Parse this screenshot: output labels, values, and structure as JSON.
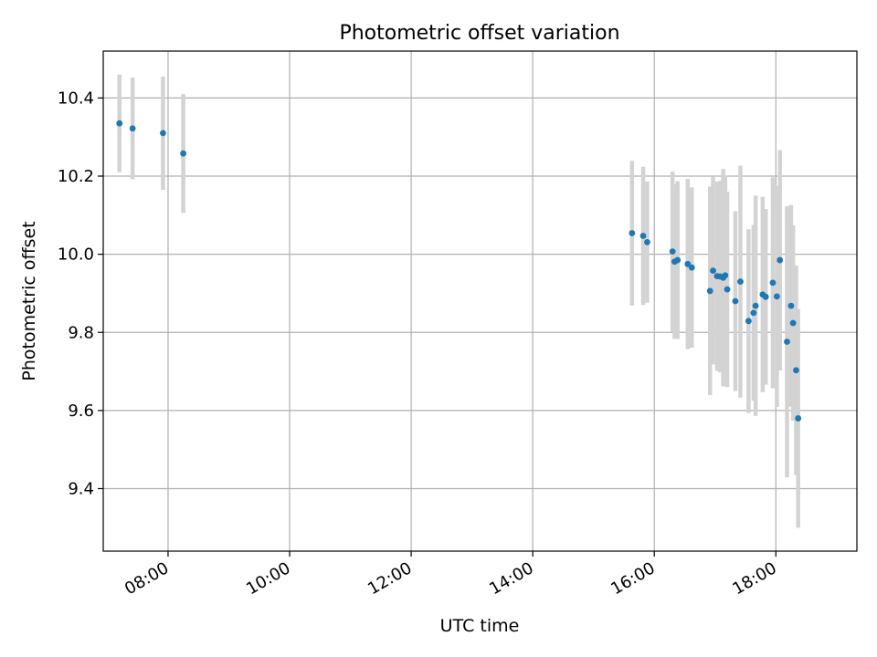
{
  "chart_data": {
    "type": "scatter",
    "title": "Photometric offset variation",
    "xlabel": "UTC time",
    "ylabel": "Photometric offset",
    "x_tick_labels": [
      "08:00",
      "10:00",
      "12:00",
      "14:00",
      "16:00",
      "18:00"
    ],
    "x_tick_values": [
      "08:00",
      "10:00",
      "12:00",
      "14:00",
      "16:00",
      "18:00"
    ],
    "y_tick_labels": [
      "9.4",
      "9.6",
      "9.8",
      "10.0",
      "10.2",
      "10.4"
    ],
    "y_tick_values": [
      9.4,
      9.6,
      9.8,
      10.0,
      10.2,
      10.4
    ],
    "xlim": [
      "06:56",
      "19:20"
    ],
    "ylim": [
      9.24,
      10.52
    ],
    "grid": true,
    "legend": false,
    "colors": {
      "points": "#1f77b4",
      "error_bars": "#d3d3d3",
      "grid": "#b0b0b0",
      "axes": "#000000"
    },
    "points": [
      {
        "x": "07:12",
        "y": 10.335,
        "err": 0.125
      },
      {
        "x": "07:25",
        "y": 10.322,
        "err": 0.13
      },
      {
        "x": "07:55",
        "y": 10.31,
        "err": 0.145
      },
      {
        "x": "08:15",
        "y": 10.258,
        "err": 0.152
      },
      {
        "x": "15:38",
        "y": 10.054,
        "err": 0.185
      },
      {
        "x": "15:49",
        "y": 10.047,
        "err": 0.177
      },
      {
        "x": "15:53",
        "y": 10.031,
        "err": 0.155
      },
      {
        "x": "16:18",
        "y": 10.007,
        "err": 0.205
      },
      {
        "x": "16:20",
        "y": 9.981,
        "err": 0.198
      },
      {
        "x": "16:23",
        "y": 9.985,
        "err": 0.202
      },
      {
        "x": "16:33",
        "y": 9.975,
        "err": 0.218
      },
      {
        "x": "16:37",
        "y": 9.966,
        "err": 0.205
      },
      {
        "x": "16:55",
        "y": 9.906,
        "err": 0.267
      },
      {
        "x": "16:58",
        "y": 9.958,
        "err": 0.24
      },
      {
        "x": "17:02",
        "y": 9.944,
        "err": 0.242
      },
      {
        "x": "17:05",
        "y": 9.943,
        "err": 0.245
      },
      {
        "x": "17:08",
        "y": 9.94,
        "err": 0.278
      },
      {
        "x": "17:10",
        "y": 9.946,
        "err": 0.255
      },
      {
        "x": "17:12",
        "y": 9.91,
        "err": 0.25
      },
      {
        "x": "17:20",
        "y": 9.88,
        "err": 0.23
      },
      {
        "x": "17:25",
        "y": 9.93,
        "err": 0.297
      },
      {
        "x": "17:33",
        "y": 9.829,
        "err": 0.235
      },
      {
        "x": "17:38",
        "y": 9.85,
        "err": 0.225
      },
      {
        "x": "17:40",
        "y": 9.868,
        "err": 0.282
      },
      {
        "x": "17:47",
        "y": 9.897,
        "err": 0.25
      },
      {
        "x": "17:50",
        "y": 9.891,
        "err": 0.225
      },
      {
        "x": "17:57",
        "y": 9.927,
        "err": 0.27
      },
      {
        "x": "18:01",
        "y": 9.892,
        "err": 0.283
      },
      {
        "x": "18:04",
        "y": 9.985,
        "err": 0.282
      },
      {
        "x": "18:11",
        "y": 9.776,
        "err": 0.347
      },
      {
        "x": "18:15",
        "y": 9.868,
        "err": 0.258
      },
      {
        "x": "18:17",
        "y": 9.824,
        "err": 0.25
      },
      {
        "x": "18:20",
        "y": 9.703,
        "err": 0.268
      },
      {
        "x": "18:22",
        "y": 9.58,
        "err": 0.28
      }
    ]
  }
}
